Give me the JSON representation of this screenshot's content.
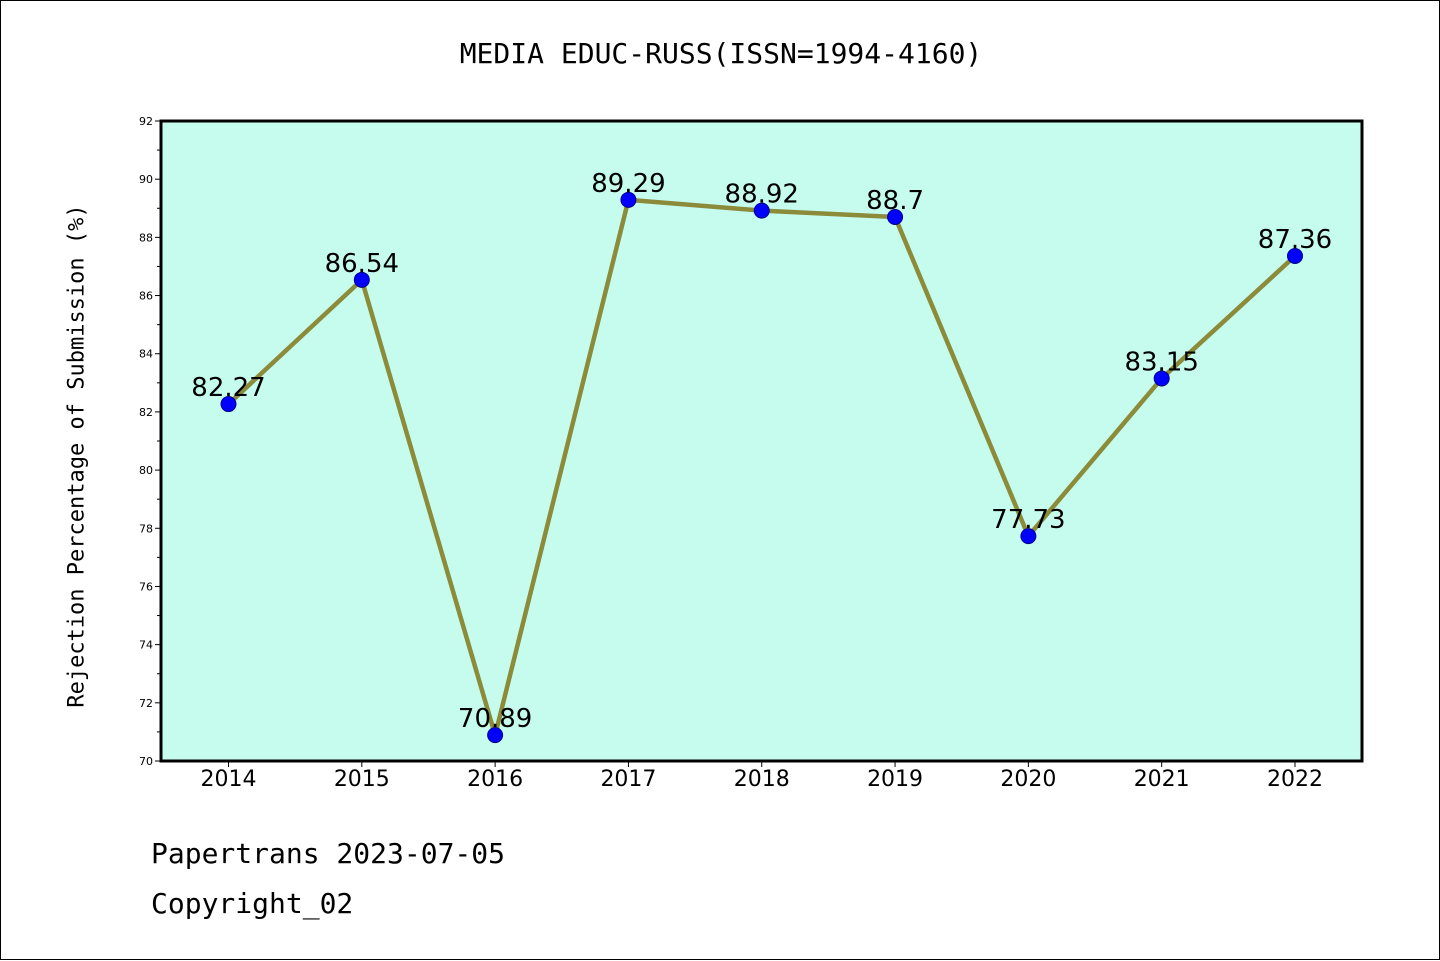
{
  "footer": {
    "line1": "Papertrans 2023-07-05",
    "line2": "Copyright_02"
  },
  "chart_data": {
    "type": "line",
    "title": "MEDIA EDUC-RUSS(ISSN=1994-4160)",
    "xlabel": "",
    "ylabel": "Rejection Percentage of Submission (%)",
    "categories": [
      "2014",
      "2015",
      "2016",
      "2017",
      "2018",
      "2019",
      "2020",
      "2021",
      "2022"
    ],
    "series": [
      {
        "values": [
          82.27,
          86.54,
          70.89,
          89.29,
          88.92,
          88.7,
          77.73,
          83.15,
          87.36
        ],
        "data_labels": [
          "82.27",
          "86.54",
          "70.89",
          "89.29",
          "88.92",
          "88.7",
          "77.73",
          "83.15",
          "87.36"
        ]
      }
    ],
    "ylim": [
      70,
      92
    ],
    "yticks": [
      70,
      72,
      74,
      76,
      78,
      80,
      82,
      84,
      86,
      88,
      90,
      92
    ],
    "grid": false,
    "legend": "none",
    "colors": {
      "plot_background": "#c6fcee",
      "line": "#8b8b3a",
      "marker": "#0000ff",
      "marker_edge": "#00008b"
    }
  }
}
